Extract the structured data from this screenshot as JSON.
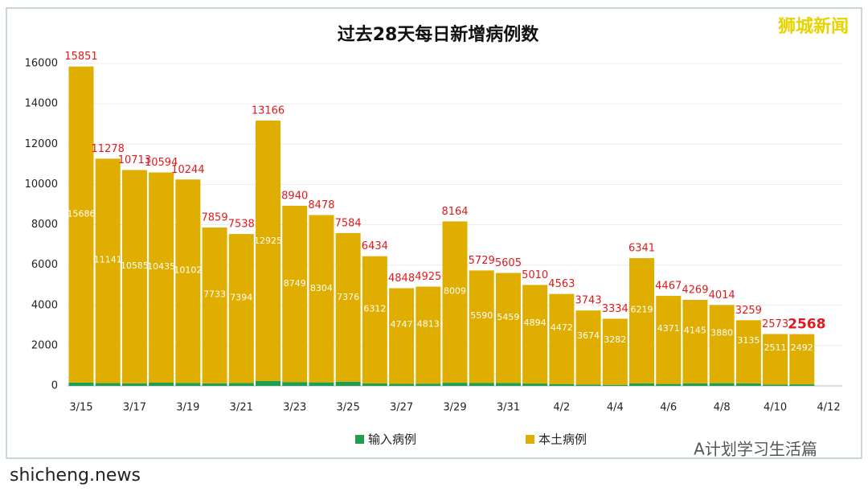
{
  "chart_data": {
    "type": "bar",
    "stacked": true,
    "title": "过去28天每日新增病例数",
    "categories": [
      "3/15",
      null,
      "3/17",
      null,
      "3/19",
      null,
      "3/21",
      null,
      "3/23",
      null,
      "3/25",
      null,
      "3/27",
      null,
      "3/29",
      null,
      "3/31",
      null,
      "4/2",
      null,
      "4/4",
      null,
      "4/6",
      null,
      "4/8",
      null,
      "4/10",
      null,
      "4/12"
    ],
    "series": [
      {
        "name": "输入病例",
        "color": "#1e9e50",
        "values": [
          165,
          137,
          128,
          159,
          142,
          126,
          144,
          241,
          191,
          174,
          208,
          122,
          101,
          112,
          155,
          139,
          146,
          116,
          91,
          69,
          52,
          122,
          96,
          124,
          134,
          124,
          62,
          76,
          null
        ]
      },
      {
        "name": "本土病例",
        "color": "#e0ae00",
        "values": [
          15686,
          11141,
          10585,
          10435,
          10102,
          7733,
          7394,
          12925,
          8749,
          8304,
          7376,
          6312,
          4747,
          4813,
          8009,
          5590,
          5459,
          4894,
          4472,
          3674,
          3282,
          6219,
          4371,
          4145,
          3880,
          3135,
          2511,
          2492,
          null
        ]
      }
    ],
    "totals": [
      15851,
      11278,
      10713,
      10594,
      10244,
      7859,
      7538,
      13166,
      8940,
      8478,
      7584,
      6434,
      4848,
      4925,
      8164,
      5729,
      5605,
      5010,
      4563,
      3743,
      3334,
      6341,
      4467,
      4269,
      4014,
      3259,
      2573,
      2568,
      null
    ],
    "ylim": [
      0,
      16000
    ],
    "yticks": [
      0,
      2000,
      4000,
      6000,
      8000,
      10000,
      12000,
      14000,
      16000
    ],
    "grid": true,
    "legend": "bottom"
  },
  "watermark": "狮城新闻",
  "footer": {
    "site": "shicheng.news",
    "account": "A计划学习生活篇"
  }
}
